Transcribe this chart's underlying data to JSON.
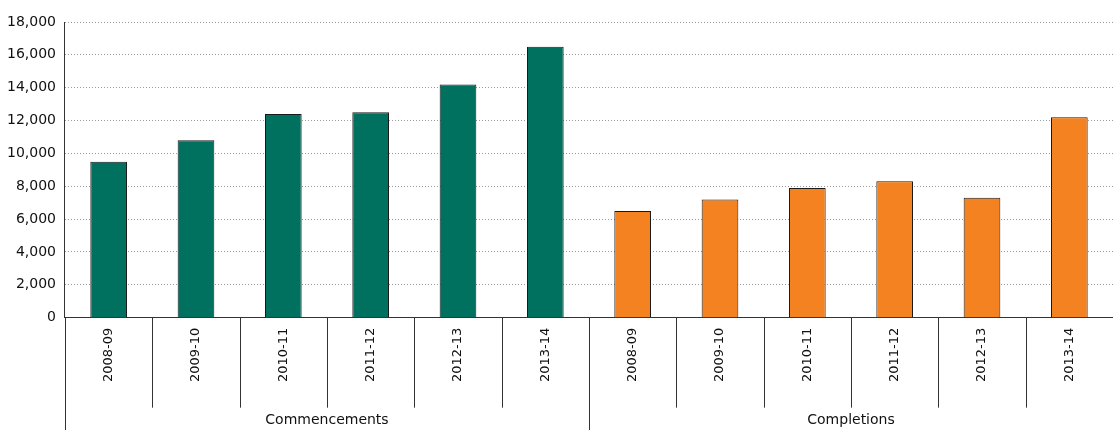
{
  "chart_data": {
    "type": "bar",
    "categories": [
      "2008-09",
      "2009-10",
      "2010-11",
      "2011-12",
      "2012-13",
      "2013-14",
      "2008-09",
      "2009-10",
      "2010-11",
      "2011-12",
      "2012-13",
      "2013-14"
    ],
    "series": [
      {
        "color": "#00705f",
        "values": [
          9500,
          10800,
          12400,
          12500,
          14200,
          16500,
          null,
          null,
          null,
          null,
          null,
          null
        ]
      },
      {
        "color": "#f58220",
        "values": [
          null,
          null,
          null,
          null,
          null,
          null,
          6500,
          7200,
          7900,
          8300,
          7300,
          12200
        ]
      }
    ],
    "annotations": [
      "Commencements",
      "Completions"
    ],
    "ylim": [
      0,
      18000
    ],
    "yticks": [
      0,
      {
        "value": 2000,
        "label": "2,000"
      },
      {
        "value": 4000,
        "label": "4,000"
      },
      {
        "value": 6000,
        "label": "6,000"
      },
      {
        "value": 8000,
        "label": "8,000"
      },
      {
        "value": 10000,
        "label": "10,000"
      },
      {
        "value": 12000,
        "label": "12,000"
      },
      {
        "value": 14000,
        "label": "14,000"
      },
      {
        "value": 16000,
        "label": "16,000"
      },
      {
        "value": 18000,
        "label": "18,000"
      }
    ],
    "grid": "y",
    "legend": false
  }
}
